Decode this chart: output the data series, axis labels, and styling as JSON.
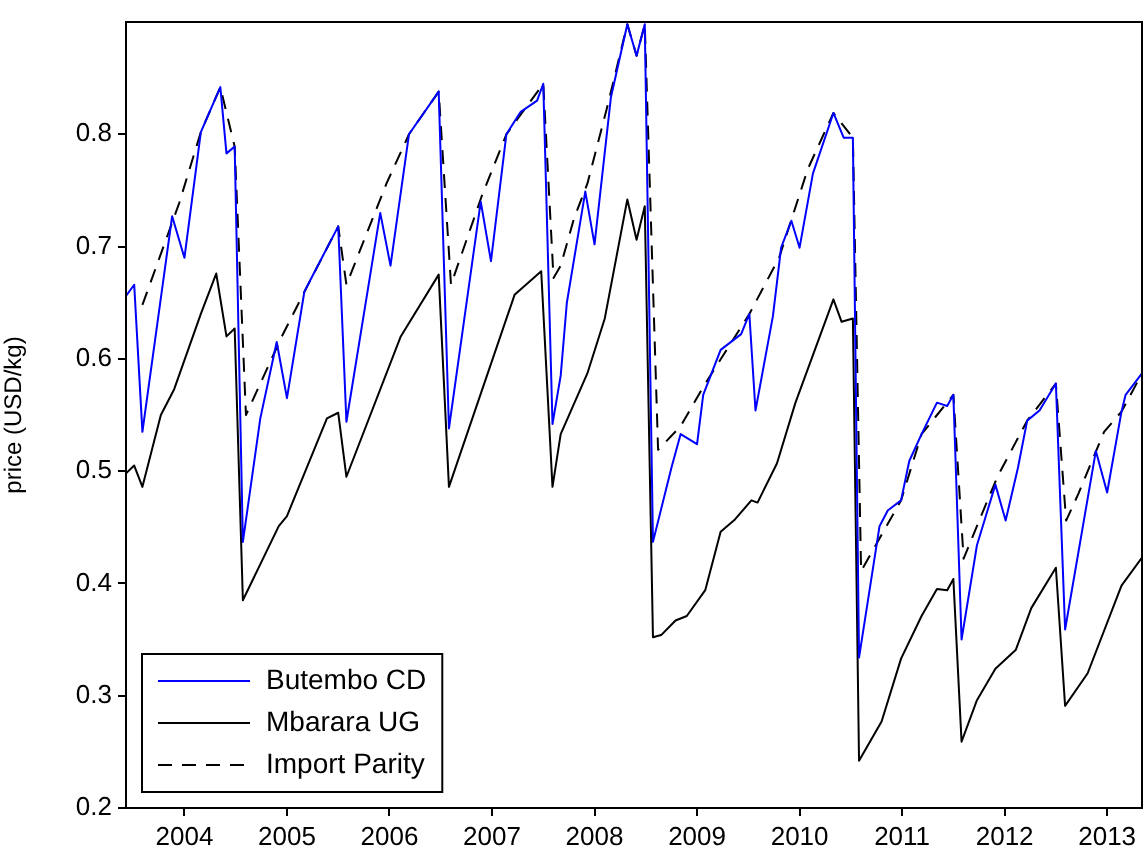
{
  "chart_data": {
    "type": "line",
    "ylabel": "price (USD/kg)",
    "xlim": [
      2003.43,
      2013.34
    ],
    "xticks": [
      2004,
      2005,
      2006,
      2007,
      2008,
      2009,
      2010,
      2011,
      2012,
      2013
    ],
    "ylim": [
      0.2,
      0.9
    ],
    "yticks": [
      0.2,
      0.3,
      0.4,
      0.5,
      0.6,
      0.7,
      0.8
    ],
    "grid": false,
    "legend": "bottom left",
    "marker": "none",
    "series": [
      {
        "name": "Butembo CD",
        "color": "#0000ff",
        "line_style": "solid",
        "x": [
          2003.43,
          2003.51,
          2003.59,
          2003.88,
          2004.0,
          2004.16,
          2004.35,
          2004.41,
          2004.49,
          2004.57,
          2004.74,
          2004.9,
          2005.0,
          2005.17,
          2005.5,
          2005.58,
          2005.91,
          2006.01,
          2006.19,
          2006.48,
          2006.58,
          2006.89,
          2006.99,
          2007.14,
          2007.28,
          2007.44,
          2007.5,
          2007.59,
          2007.67,
          2007.73,
          2007.91,
          2008.0,
          2008.16,
          2008.32,
          2008.41,
          2008.49,
          2008.57,
          2008.75,
          2008.84,
          2009.0,
          2009.06,
          2009.23,
          2009.43,
          2009.51,
          2009.57,
          2009.74,
          2009.82,
          2009.92,
          2010.0,
          2010.13,
          2010.33,
          2010.43,
          2010.52,
          2010.58,
          2010.78,
          2010.86,
          2010.99,
          2011.07,
          2011.19,
          2011.34,
          2011.44,
          2011.5,
          2011.58,
          2011.73,
          2011.91,
          2012.01,
          2012.13,
          2012.22,
          2012.34,
          2012.5,
          2012.59,
          2012.89,
          2013.0,
          2013.14,
          2013.18,
          2013.34
        ],
        "values": [
          0.656,
          0.666,
          0.535,
          0.727,
          0.69,
          0.802,
          0.842,
          0.783,
          0.789,
          0.437,
          0.547,
          0.615,
          0.565,
          0.66,
          0.718,
          0.544,
          0.73,
          0.683,
          0.8,
          0.838,
          0.538,
          0.74,
          0.687,
          0.8,
          0.82,
          0.83,
          0.845,
          0.542,
          0.585,
          0.65,
          0.749,
          0.702,
          0.833,
          0.898,
          0.87,
          0.898,
          0.437,
          0.503,
          0.533,
          0.524,
          0.568,
          0.608,
          0.622,
          0.64,
          0.554,
          0.638,
          0.699,
          0.723,
          0.699,
          0.765,
          0.819,
          0.797,
          0.797,
          0.334,
          0.451,
          0.465,
          0.474,
          0.509,
          0.533,
          0.561,
          0.558,
          0.568,
          0.35,
          0.434,
          0.488,
          0.456,
          0.503,
          0.545,
          0.554,
          0.578,
          0.359,
          0.518,
          0.481,
          0.553,
          0.568,
          0.587
        ]
      },
      {
        "name": "Mbarara UG",
        "color": "#000000",
        "line_style": "solid",
        "x": [
          2003.43,
          2003.51,
          2003.59,
          2003.77,
          2003.9,
          2004.16,
          2004.31,
          2004.41,
          2004.49,
          2004.57,
          2004.92,
          2005.0,
          2005.39,
          2005.5,
          2005.58,
          2006.11,
          2006.48,
          2006.58,
          2007.22,
          2007.48,
          2007.59,
          2007.67,
          2007.93,
          2008.1,
          2008.32,
          2008.41,
          2008.49,
          2008.57,
          2008.65,
          2008.79,
          2008.9,
          2009.08,
          2009.23,
          2009.37,
          2009.53,
          2009.59,
          2009.78,
          2009.96,
          2010.33,
          2010.41,
          2010.52,
          2010.58,
          2010.8,
          2010.99,
          2011.19,
          2011.34,
          2011.44,
          2011.5,
          2011.58,
          2011.73,
          2011.91,
          2012.11,
          2012.26,
          2012.5,
          2012.59,
          2012.81,
          2013.14,
          2013.34
        ],
        "values": [
          0.498,
          0.505,
          0.486,
          0.55,
          0.573,
          0.64,
          0.676,
          0.62,
          0.627,
          0.385,
          0.451,
          0.46,
          0.547,
          0.552,
          0.495,
          0.62,
          0.675,
          0.486,
          0.657,
          0.678,
          0.486,
          0.533,
          0.587,
          0.636,
          0.742,
          0.706,
          0.736,
          0.352,
          0.354,
          0.367,
          0.371,
          0.394,
          0.446,
          0.457,
          0.474,
          0.472,
          0.507,
          0.561,
          0.653,
          0.633,
          0.636,
          0.242,
          0.277,
          0.333,
          0.371,
          0.395,
          0.394,
          0.404,
          0.259,
          0.296,
          0.324,
          0.341,
          0.378,
          0.414,
          0.291,
          0.32,
          0.398,
          0.423
        ]
      },
      {
        "name": "Import Parity",
        "color": "#000000",
        "line_style": "dashed",
        "x": [
          2003.59,
          2003.95,
          2004.16,
          2004.35,
          2004.49,
          2004.6,
          2004.95,
          2005.2,
          2005.5,
          2005.58,
          2005.97,
          2006.19,
          2006.48,
          2006.6,
          2006.9,
          2007.14,
          2007.5,
          2007.6,
          2007.67,
          2007.8,
          2007.93,
          2008.12,
          2008.32,
          2008.41,
          2008.49,
          2008.62,
          2008.84,
          2009.06,
          2009.51,
          2009.8,
          2010.08,
          2010.33,
          2010.52,
          2010.6,
          2010.99,
          2011.19,
          2011.5,
          2011.6,
          2011.77,
          2011.93,
          2012.22,
          2012.5,
          2012.6,
          2012.72,
          2012.97,
          2013.14,
          2013.34
        ],
        "values": [
          0.648,
          0.739,
          0.802,
          0.842,
          0.789,
          0.55,
          0.62,
          0.665,
          0.718,
          0.666,
          0.756,
          0.8,
          0.838,
          0.666,
          0.745,
          0.8,
          0.845,
          0.672,
          0.683,
          0.725,
          0.756,
          0.823,
          0.898,
          0.87,
          0.898,
          0.519,
          0.54,
          0.575,
          0.64,
          0.69,
          0.769,
          0.819,
          0.797,
          0.411,
          0.474,
          0.533,
          0.568,
          0.422,
          0.46,
          0.495,
          0.545,
          0.578,
          0.456,
          0.48,
          0.535,
          0.553,
          0.587
        ]
      }
    ]
  }
}
